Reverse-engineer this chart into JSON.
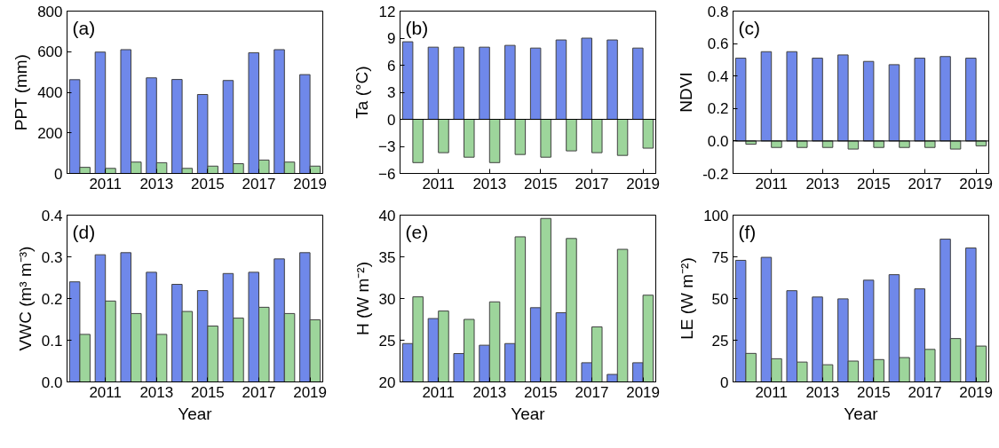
{
  "chart_data": [
    {
      "type": "bar",
      "ylabel": "PPT (mm)",
      "annotations": [
        "(a)"
      ],
      "x": [
        2010,
        2011,
        2012,
        2013,
        2014,
        2015,
        2016,
        2017,
        2018,
        2019
      ],
      "xlim": [
        2009.5,
        2019.5
      ],
      "xticks": [
        2011,
        2013,
        2015,
        2017,
        2019
      ],
      "ylim": [
        0,
        800
      ],
      "yticks": [
        0,
        200,
        400,
        600,
        800
      ],
      "series": [
        {
          "color": "#6f88ea",
          "values": [
            462,
            598,
            610,
            471,
            463,
            389,
            458,
            595,
            610,
            487
          ]
        },
        {
          "color": "#9dd59b",
          "values": [
            30,
            25,
            56,
            53,
            25,
            36,
            48,
            66,
            56,
            36
          ]
        }
      ]
    },
    {
      "type": "bar",
      "ylabel": "Ta (°C)",
      "annotations": [
        "(b)"
      ],
      "x": [
        2010,
        2011,
        2012,
        2013,
        2014,
        2015,
        2016,
        2017,
        2018,
        2019
      ],
      "xlim": [
        2009.5,
        2019.5
      ],
      "xticks": [
        2011,
        2013,
        2015,
        2017,
        2019
      ],
      "ylim": [
        -6,
        12
      ],
      "yticks": [
        -6,
        -3,
        0,
        3,
        6,
        9,
        12
      ],
      "ref_lines": [
        {
          "axis": "y",
          "value": 0,
          "color": "#000000"
        }
      ],
      "series": [
        {
          "color": "#6f88ea",
          "values": [
            8.6,
            8.0,
            8.0,
            8.0,
            8.2,
            7.9,
            8.8,
            9.0,
            8.8,
            7.9
          ]
        },
        {
          "color": "#9dd59b",
          "values": [
            -4.8,
            -3.7,
            -4.2,
            -4.8,
            -3.9,
            -4.2,
            -3.5,
            -3.7,
            -4.0,
            -3.2
          ]
        }
      ]
    },
    {
      "type": "bar",
      "ylabel": "NDVI",
      "annotations": [
        "(c)"
      ],
      "x": [
        2010,
        2011,
        2012,
        2013,
        2014,
        2015,
        2016,
        2017,
        2018,
        2019
      ],
      "xlim": [
        2009.5,
        2019.5
      ],
      "xticks": [
        2011,
        2013,
        2015,
        2017,
        2019
      ],
      "ylim": [
        -0.2,
        0.8
      ],
      "yticks": [
        {
          "value": -0.2,
          "label": "-0.2"
        },
        {
          "value": 0,
          "label": "0.0"
        },
        {
          "value": 0.2,
          "label": "0.2"
        },
        {
          "value": 0.4,
          "label": "0.4"
        },
        {
          "value": 0.6,
          "label": "0.6"
        },
        {
          "value": 0.8,
          "label": "0.8"
        }
      ],
      "ref_lines": [
        {
          "axis": "y",
          "value": 0,
          "color": "#000000"
        }
      ],
      "series": [
        {
          "color": "#6f88ea",
          "values": [
            0.51,
            0.55,
            0.55,
            0.51,
            0.53,
            0.49,
            0.47,
            0.51,
            0.52,
            0.51
          ]
        },
        {
          "color": "#9dd59b",
          "values": [
            -0.02,
            -0.04,
            -0.04,
            -0.04,
            -0.05,
            -0.04,
            -0.04,
            -0.04,
            -0.05,
            -0.03
          ]
        }
      ]
    },
    {
      "type": "bar",
      "ylabel": "VWC (m³ m⁻³)",
      "xlabel": "Year",
      "annotations": [
        "(d)"
      ],
      "x": [
        2010,
        2011,
        2012,
        2013,
        2014,
        2015,
        2016,
        2017,
        2018,
        2019
      ],
      "xlim": [
        2009.5,
        2019.5
      ],
      "xticks": [
        2011,
        2013,
        2015,
        2017,
        2019
      ],
      "ylim": [
        0,
        0.4
      ],
      "yticks": [
        {
          "value": 0,
          "label": "0.0"
        },
        {
          "value": 0.1,
          "label": "0.1"
        },
        {
          "value": 0.2,
          "label": "0.2"
        },
        {
          "value": 0.3,
          "label": "0.3"
        },
        {
          "value": 0.4,
          "label": "0.4"
        }
      ],
      "series": [
        {
          "color": "#6f88ea",
          "values": [
            0.24,
            0.305,
            0.31,
            0.263,
            0.234,
            0.219,
            0.26,
            0.263,
            0.295,
            0.31
          ]
        },
        {
          "color": "#9dd59b",
          "values": [
            0.114,
            0.194,
            0.164,
            0.114,
            0.169,
            0.134,
            0.153,
            0.179,
            0.164,
            0.149
          ]
        }
      ]
    },
    {
      "type": "bar",
      "ylabel": "H (W m⁻²)",
      "xlabel": "Year",
      "annotations": [
        "(e)"
      ],
      "x": [
        2010,
        2011,
        2012,
        2013,
        2014,
        2015,
        2016,
        2017,
        2018,
        2019
      ],
      "xlim": [
        2009.5,
        2019.5
      ],
      "xticks": [
        2011,
        2013,
        2015,
        2017,
        2019
      ],
      "ylim": [
        20,
        40
      ],
      "yticks": [
        20,
        25,
        30,
        35,
        40
      ],
      "series": [
        {
          "color": "#6f88ea",
          "values": [
            24.6,
            27.6,
            23.4,
            24.4,
            24.6,
            28.9,
            28.3,
            22.3,
            20.9,
            22.3
          ]
        },
        {
          "color": "#9dd59b",
          "values": [
            30.2,
            28.5,
            27.5,
            29.6,
            37.4,
            39.6,
            37.2,
            26.6,
            35.9,
            30.4
          ]
        }
      ]
    },
    {
      "type": "bar",
      "ylabel": "LE (W m⁻²)",
      "xlabel": "Year",
      "annotations": [
        "(f)"
      ],
      "x": [
        2010,
        2011,
        2012,
        2013,
        2014,
        2015,
        2016,
        2017,
        2018,
        2019
      ],
      "xlim": [
        2009.5,
        2019.5
      ],
      "xticks": [
        2011,
        2013,
        2015,
        2017,
        2019
      ],
      "ylim": [
        0,
        100
      ],
      "yticks": [
        0,
        25,
        50,
        75,
        100
      ],
      "series": [
        {
          "color": "#6f88ea",
          "values": [
            72.9,
            74.7,
            54.7,
            50.9,
            49.8,
            61,
            64.3,
            55.8,
            85.6,
            80.3
          ]
        },
        {
          "color": "#9dd59b",
          "values": [
            17.1,
            13.9,
            11.9,
            10.3,
            12.5,
            13.4,
            14.6,
            19.5,
            26,
            21.5
          ]
        }
      ]
    }
  ]
}
